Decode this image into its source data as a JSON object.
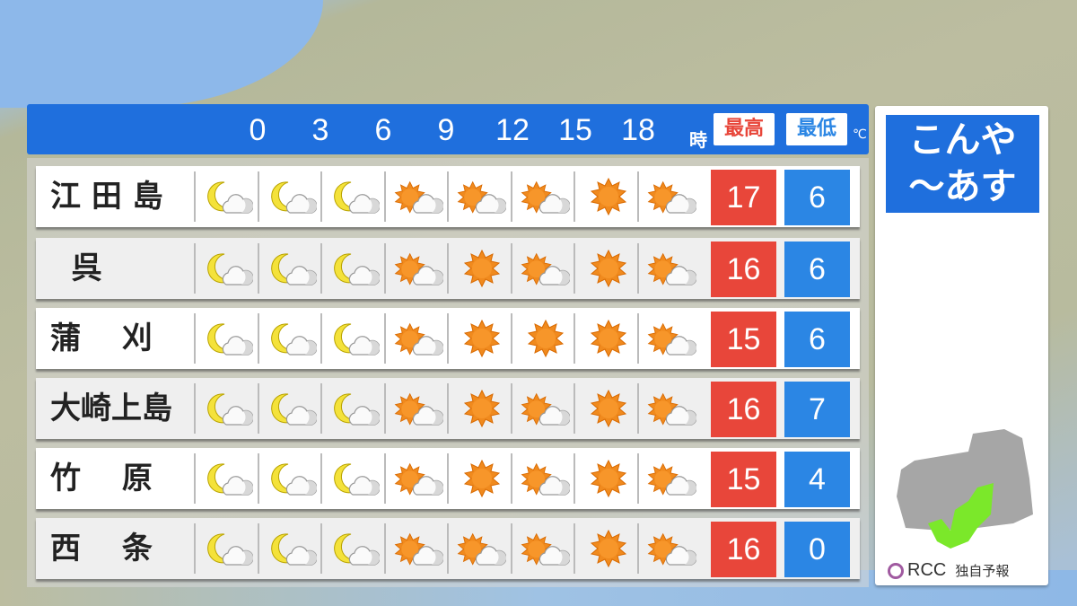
{
  "header": {
    "hours": [
      "0",
      "3",
      "6",
      "9",
      "12",
      "15",
      "18"
    ],
    "hour_unit": "時",
    "high_label": "最高",
    "low_label": "最低",
    "temp_unit": "℃"
  },
  "colors": {
    "header": "#1f6fdd",
    "high": "#e8463a",
    "low": "#2b86e4",
    "region": "#7be82a"
  },
  "rows": [
    {
      "name": "江 田 島",
      "icons": [
        "moon-cloud",
        "moon-cloud",
        "moon-cloud",
        "sun-cloud",
        "sun-cloud",
        "sun-cloud",
        "sun",
        "sun-cloud"
      ],
      "high": "17",
      "low": "6"
    },
    {
      "name": "  呉",
      "icons": [
        "moon-cloud",
        "moon-cloud",
        "moon-cloud",
        "sun-cloud",
        "sun",
        "sun-cloud",
        "sun",
        "sun-cloud"
      ],
      "high": "16",
      "low": "6"
    },
    {
      "name": "蒲　 刈",
      "icons": [
        "moon-cloud",
        "moon-cloud",
        "moon-cloud",
        "sun-cloud",
        "sun",
        "sun",
        "sun",
        "sun-cloud"
      ],
      "high": "15",
      "low": "6"
    },
    {
      "name": "大崎上島",
      "icons": [
        "moon-cloud",
        "moon-cloud",
        "moon-cloud",
        "sun-cloud",
        "sun",
        "sun-cloud",
        "sun",
        "sun-cloud"
      ],
      "high": "16",
      "low": "7"
    },
    {
      "name": "竹　 原",
      "icons": [
        "moon-cloud",
        "moon-cloud",
        "moon-cloud",
        "sun-cloud",
        "sun",
        "sun-cloud",
        "sun",
        "sun-cloud"
      ],
      "high": "15",
      "low": "4"
    },
    {
      "name": "西　 条",
      "icons": [
        "moon-cloud",
        "moon-cloud",
        "moon-cloud",
        "sun-cloud",
        "sun-cloud",
        "sun-cloud",
        "sun",
        "sun-cloud"
      ],
      "high": "16",
      "low": "0"
    }
  ],
  "panel": {
    "title_line1": "こんや",
    "title_line2": "～あす",
    "logo": "RCC",
    "caption": "独自予報"
  }
}
